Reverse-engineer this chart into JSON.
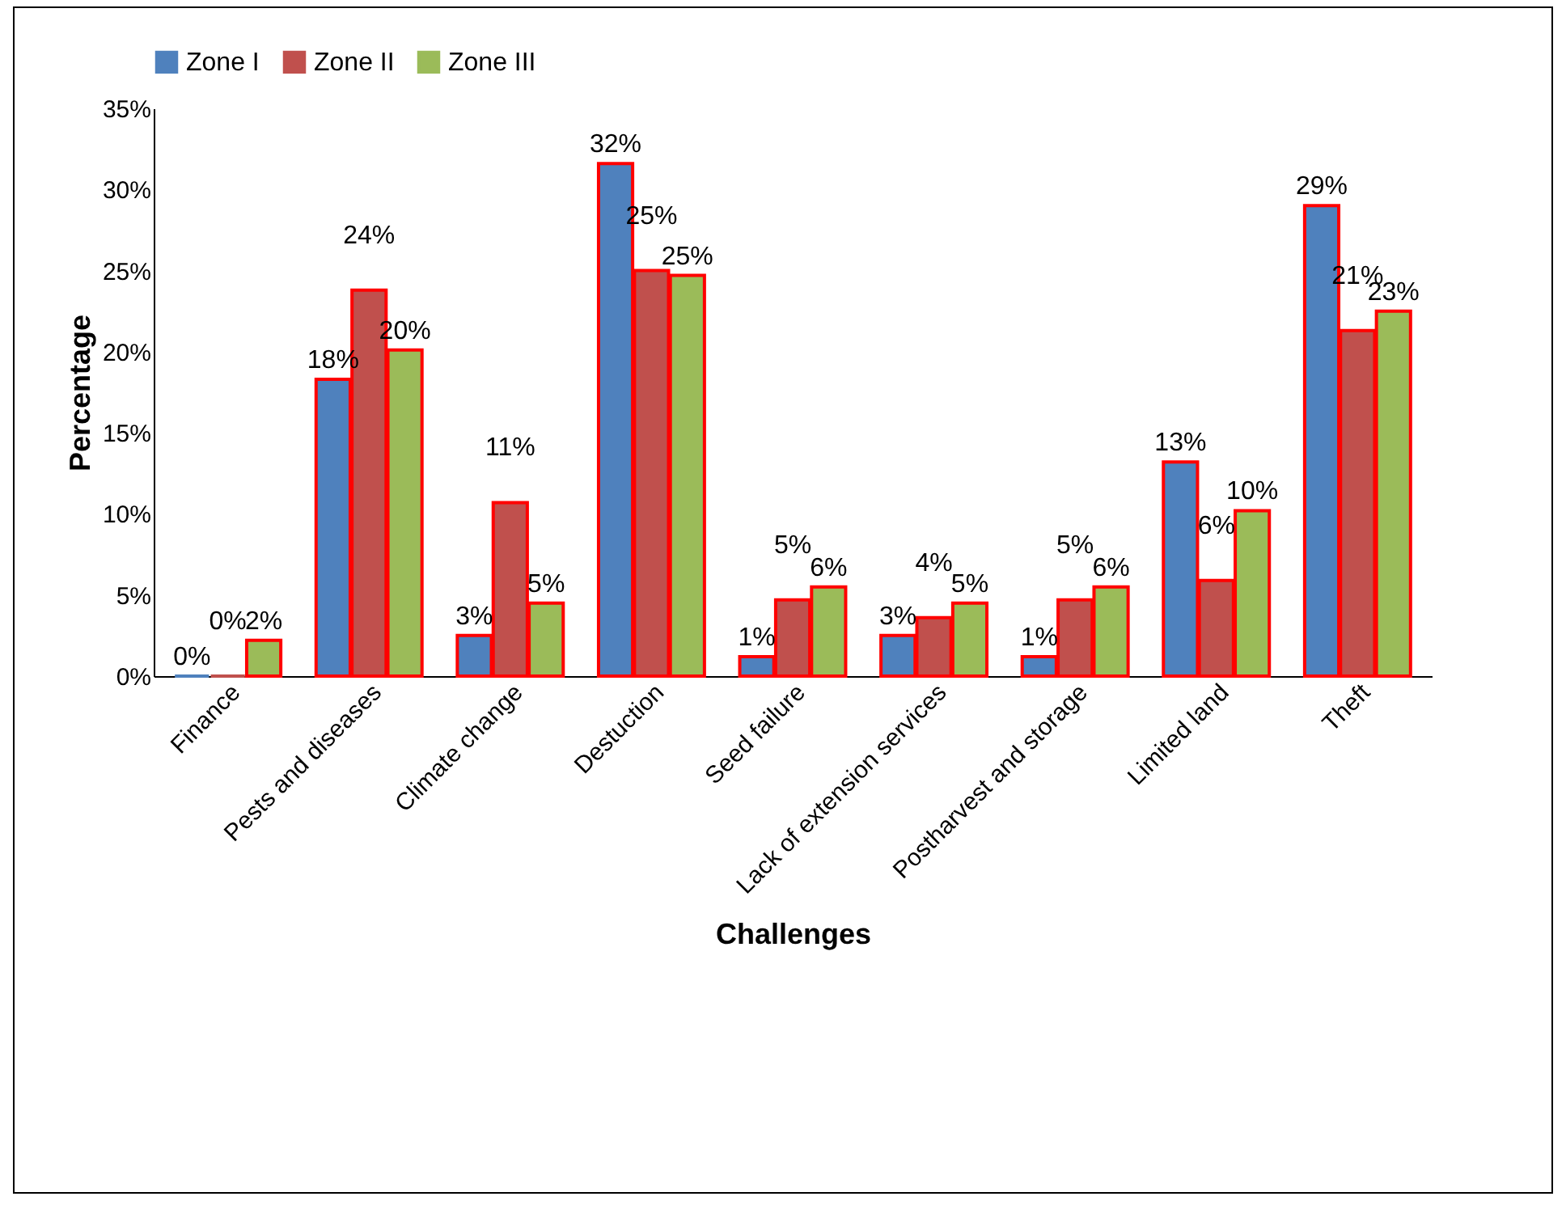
{
  "chart_data": {
    "type": "bar",
    "xlabel": "Challenges",
    "ylabel": "Percentage",
    "categories": [
      "Finance",
      "Pests and diseases",
      "Climate change",
      "Destuction",
      "Seed failure",
      "Lack of extension services",
      "Postharvest and storage",
      "Limited land",
      "Theft"
    ],
    "series": [
      {
        "name": "Zone I",
        "color": "#4f81bd",
        "values": [
          0,
          18.3,
          2.5,
          31.6,
          1.2,
          2.5,
          1.2,
          13.2,
          29.0
        ],
        "value_labels": [
          "0%",
          "18%",
          "3%",
          "32%",
          "1%",
          "3%",
          "1%",
          "13%",
          "29%"
        ]
      },
      {
        "name": "Zone II",
        "color": "#c0504d",
        "values": [
          0,
          23.8,
          10.7,
          25.0,
          4.7,
          3.6,
          4.7,
          5.9,
          21.3
        ],
        "value_labels": [
          "0%",
          "24%",
          "11%",
          "25%",
          "5%",
          "4%",
          "5%",
          "6%",
          "21%"
        ]
      },
      {
        "name": "Zone III",
        "color": "#9bbb59",
        "values": [
          2.2,
          20.1,
          4.5,
          24.7,
          5.5,
          4.5,
          5.5,
          10.2,
          22.5
        ],
        "value_labels": [
          "2%",
          "20%",
          "5%",
          "25%",
          "6%",
          "5%",
          "6%",
          "10%",
          "23%"
        ]
      }
    ],
    "ylim": [
      0,
      35
    ],
    "yticks": [
      {
        "value": 0,
        "label": "0%"
      },
      {
        "value": 5,
        "label": "5%"
      },
      {
        "value": 10,
        "label": "10%"
      },
      {
        "value": 15,
        "label": "15%"
      },
      {
        "value": 20,
        "label": "20%"
      },
      {
        "value": 25,
        "label": "25%"
      },
      {
        "value": 30,
        "label": "30%"
      },
      {
        "value": 35,
        "label": "35%"
      }
    ],
    "grid": false,
    "legend": "top"
  }
}
